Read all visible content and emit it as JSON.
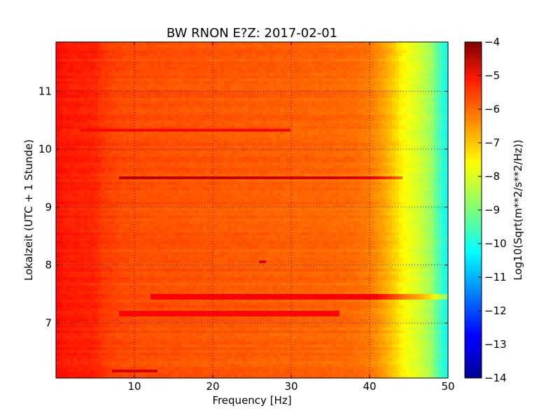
{
  "chart_data": {
    "type": "heatmap",
    "title": "BW RNON E?Z: 2017-02-01",
    "xlabel": "Frequency [Hz]",
    "ylabel": "Lokalzeit (UTC + 1 Stunde)",
    "colorbar_label": "Log10(Sqrt(m**2/s**2/Hz))",
    "xlim": [
      0,
      50
    ],
    "ylim": [
      11.85,
      6.05
    ],
    "x_ticks": [
      10,
      20,
      30,
      40,
      50
    ],
    "x_tick_labels": [
      "10",
      "20",
      "30",
      "40",
      "50"
    ],
    "y_ticks": [
      7,
      8,
      9,
      10,
      11
    ],
    "y_tick_labels": [
      "7",
      "8",
      "9",
      "10",
      "11"
    ],
    "color_range": [
      -14,
      -4
    ],
    "colorbar_ticks": [
      -4,
      -5,
      -6,
      -7,
      -8,
      -9,
      -10,
      -11,
      -12,
      -13,
      -14
    ],
    "colorbar_tick_labels": [
      "−4",
      "−5",
      "−6",
      "−7",
      "−8",
      "−9",
      "−10",
      "−11",
      "−12",
      "−13",
      "−14"
    ],
    "colormap": "jet",
    "grid": true,
    "grid_style": "dotted",
    "frequency_profile": {
      "x": [
        0,
        1,
        3,
        5,
        6,
        8,
        10,
        15,
        20,
        25,
        30,
        35,
        38,
        40,
        41,
        42,
        43,
        44,
        45,
        46,
        47,
        48,
        49,
        50
      ],
      "value": [
        -5.35,
        -5.5,
        -5.55,
        -5.6,
        -5.8,
        -5.95,
        -6.0,
        -6.05,
        -6.1,
        -6.15,
        -6.2,
        -6.25,
        -6.3,
        -6.45,
        -6.65,
        -6.9,
        -7.2,
        -7.6,
        -7.9,
        -8.1,
        -8.4,
        -8.8,
        -9.6,
        -10.2
      ]
    },
    "features": [
      {
        "time": 9.5,
        "x_from": 8,
        "x_to": 44,
        "value": -4.55
      },
      {
        "time": 7.45,
        "x_from": 12,
        "x_to": 50,
        "value": -5.2
      },
      {
        "time": 6.18,
        "x_from": 7,
        "x_to": 13,
        "value": -4.9
      },
      {
        "time": 7.15,
        "x_from": 8,
        "x_to": 36,
        "value": -5.3
      },
      {
        "time": 10.32,
        "x_from": 3,
        "x_to": 30,
        "value": -5.3
      },
      {
        "time": 8.05,
        "x_from": 26,
        "x_to": 27,
        "value": -4.9
      }
    ]
  }
}
